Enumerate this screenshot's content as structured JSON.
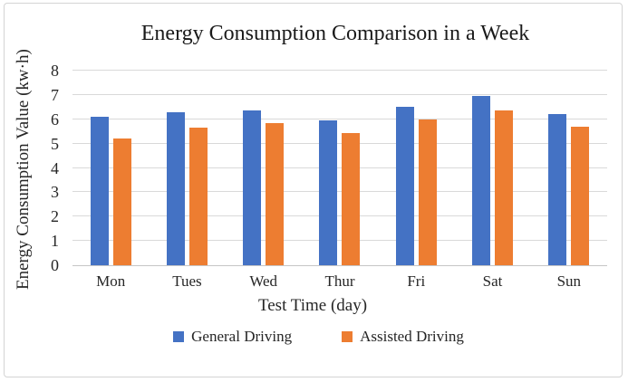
{
  "frame": {
    "background": "#ffffff",
    "border_color": "#d4d4d4"
  },
  "chart_data": {
    "type": "bar",
    "title": "Energy Consumption Comparison in a Week",
    "xlabel": "Test Time (day)",
    "ylabel": "Energy Consumption Value (kw·h)",
    "categories": [
      "Mon",
      "Tues",
      "Wed",
      "Thur",
      "Fri",
      "Sat",
      "Sun"
    ],
    "series": [
      {
        "name": "General Driving",
        "color": "#4472C4",
        "values": [
          6.1,
          6.3,
          6.35,
          5.95,
          6.5,
          6.95,
          6.2
        ]
      },
      {
        "name": "Assisted Driving",
        "color": "#ED7D31",
        "values": [
          5.2,
          5.65,
          5.85,
          5.45,
          6.0,
          6.35,
          5.7
        ]
      }
    ],
    "ylim": [
      0,
      8
    ],
    "yticks": [
      0,
      1,
      2,
      3,
      4,
      5,
      6,
      7,
      8
    ],
    "grid": true,
    "gridline_color": "#D9D9D9",
    "axis_line_color": "#C6C6C6",
    "legend_position": "bottom"
  }
}
